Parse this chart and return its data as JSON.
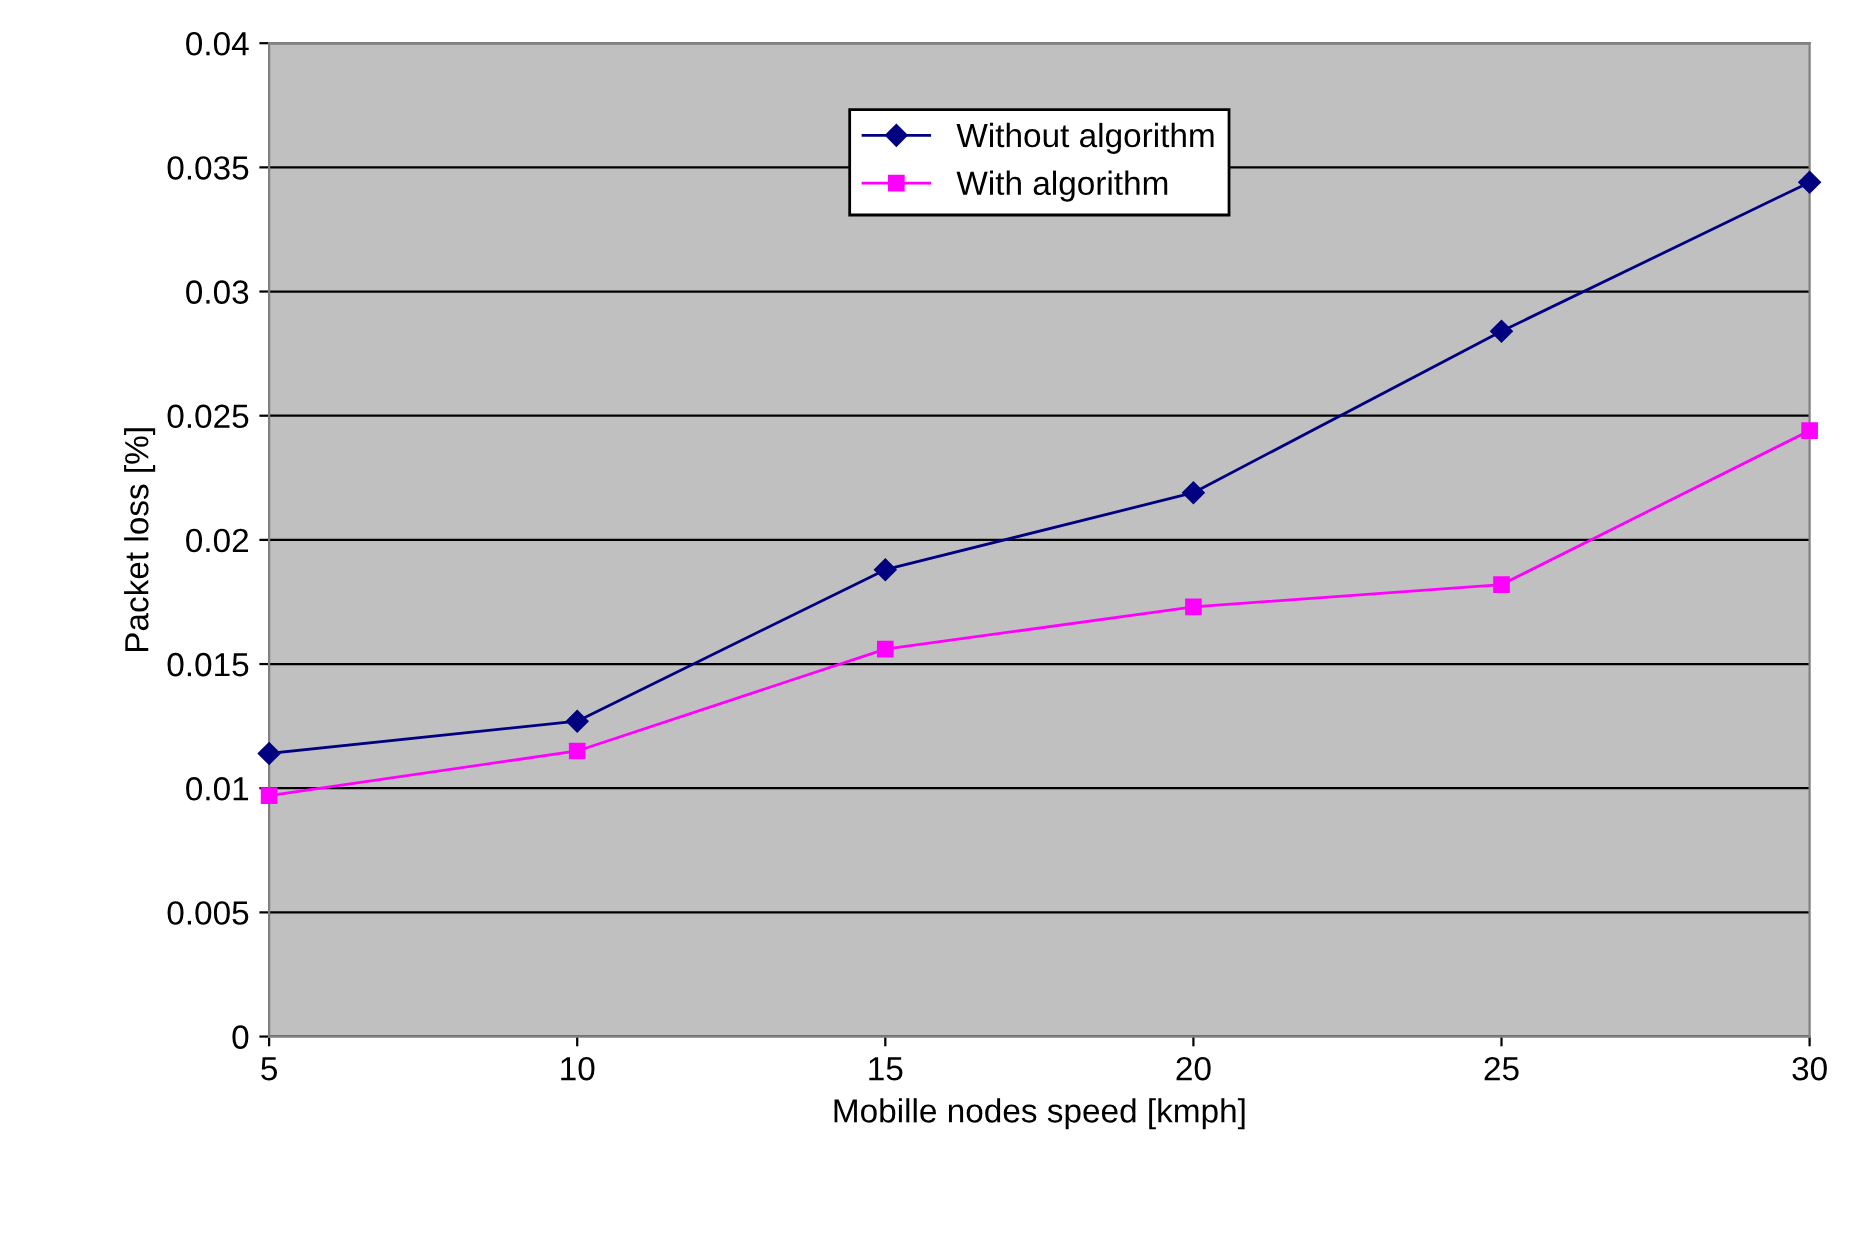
{
  "chart_data": {
    "type": "line",
    "xlabel": "Mobille nodes speed [kmph]",
    "ylabel": "Packet loss [%]",
    "x": [
      5,
      10,
      15,
      20,
      25,
      30
    ],
    "series": [
      {
        "name": "Without algorithm",
        "color": "#000080",
        "marker": "diamond",
        "values": [
          0.0114,
          0.0127,
          0.0188,
          0.0219,
          0.0284,
          0.0344
        ]
      },
      {
        "name": "With algorithm",
        "color": "#ff00ff",
        "marker": "square",
        "values": [
          0.0097,
          0.0115,
          0.0156,
          0.0173,
          0.0182,
          0.0244
        ]
      }
    ],
    "xlim": [
      5,
      30
    ],
    "xticks": [
      5,
      10,
      15,
      20,
      25,
      30
    ],
    "ylim": [
      0,
      0.04
    ],
    "yticks": [
      0,
      0.005,
      0.01,
      0.015,
      0.02,
      0.025,
      0.03,
      0.035,
      0.04
    ],
    "grid": "y",
    "legend": "top",
    "line_style": "solid"
  }
}
